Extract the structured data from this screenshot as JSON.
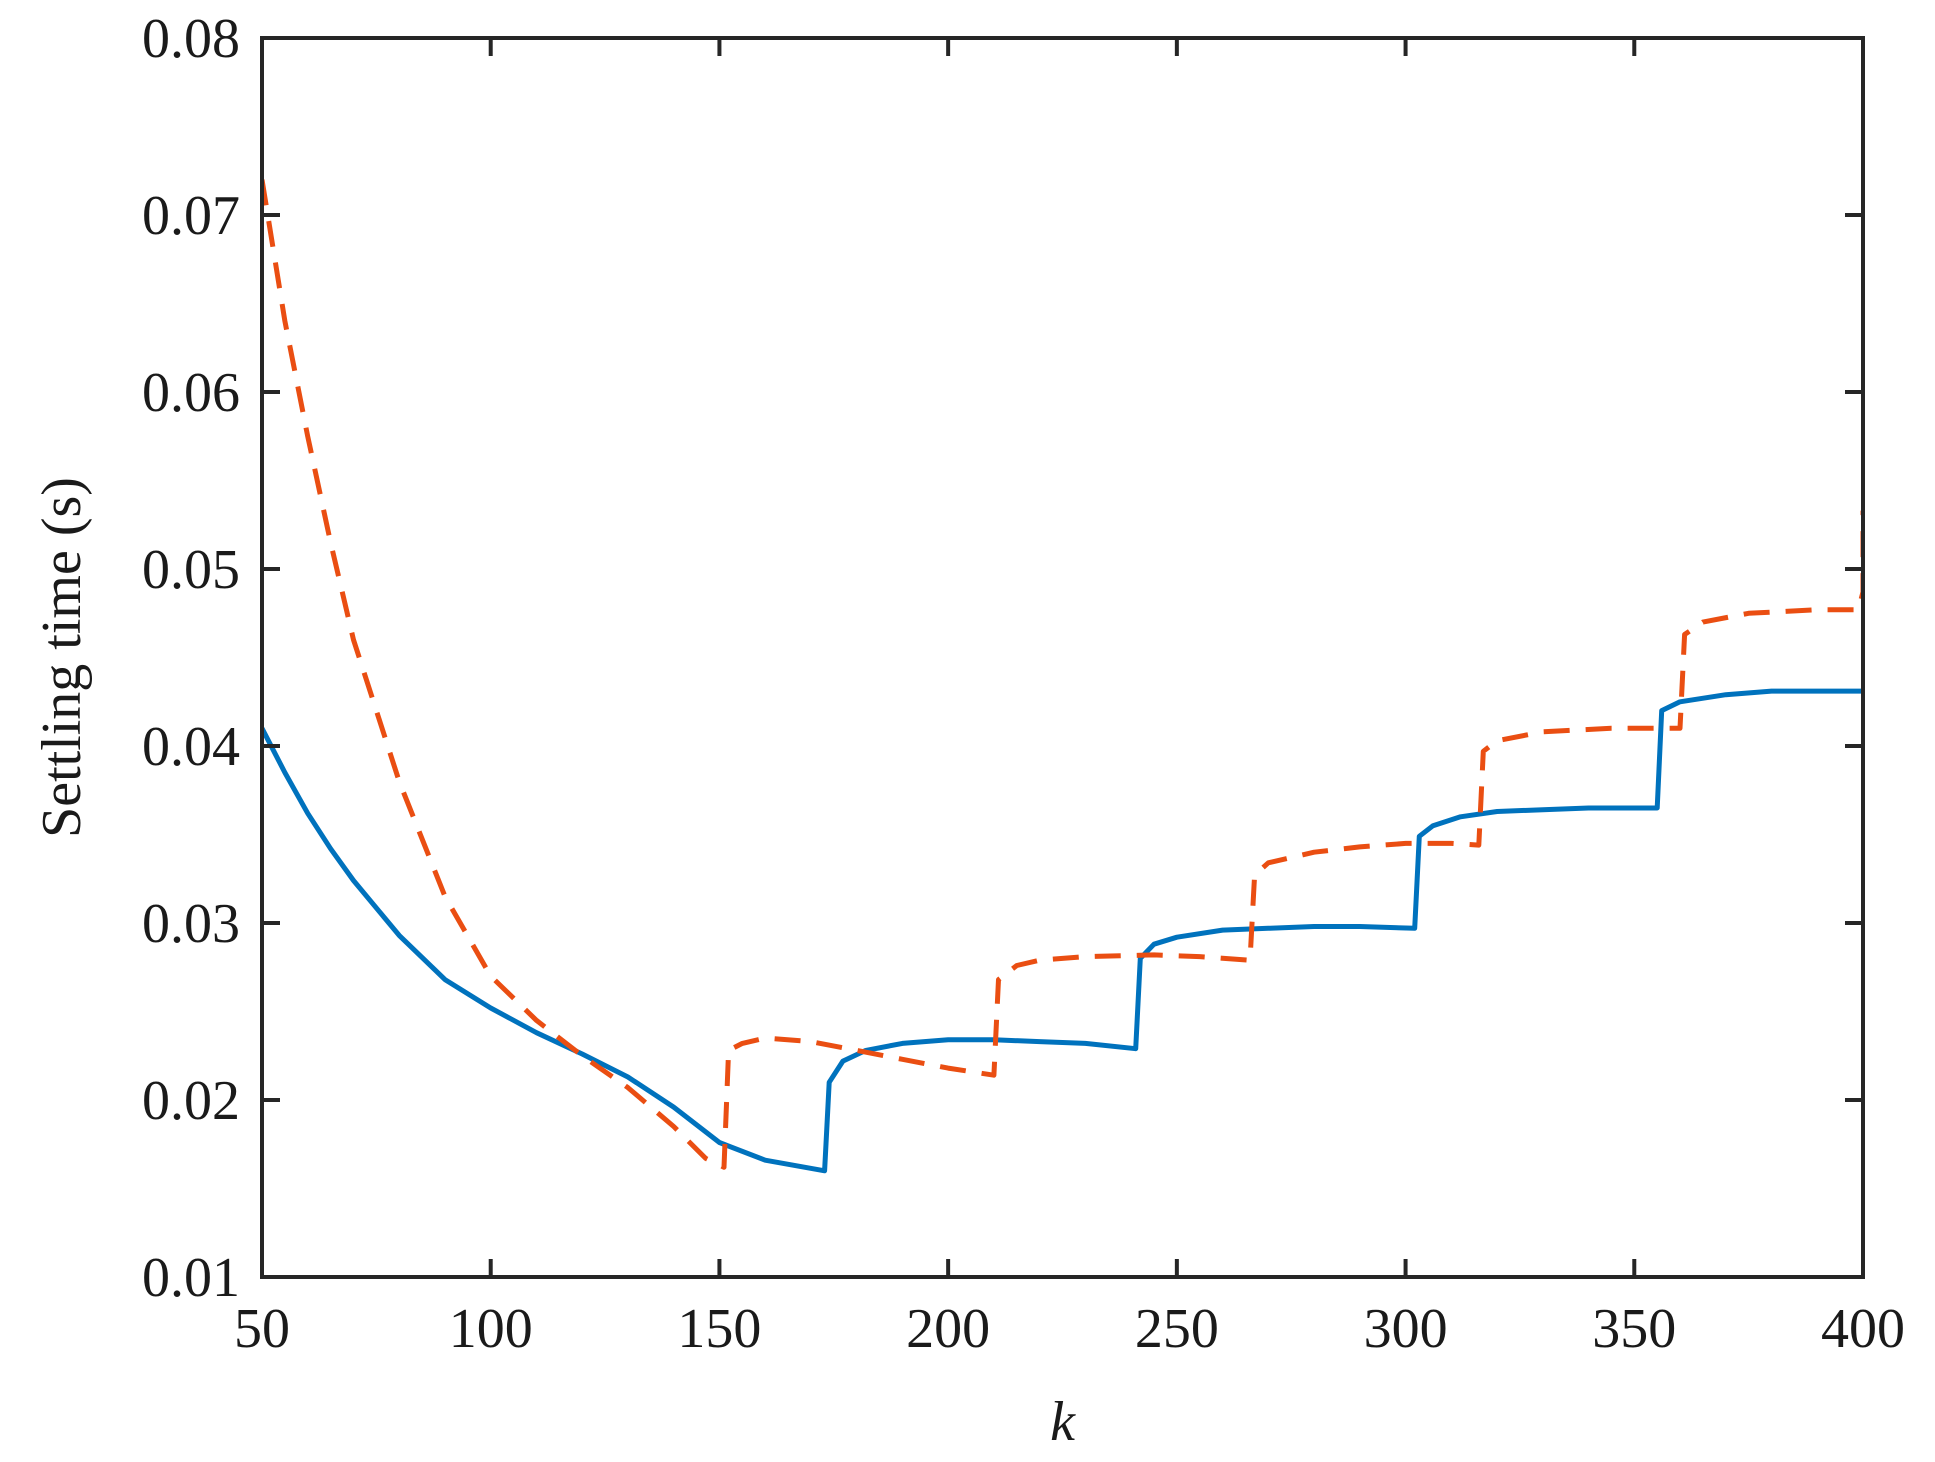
{
  "chart_data": {
    "type": "line",
    "title": "",
    "xlabel": "k",
    "ylabel": "Settling time (s)",
    "xlim": [
      50,
      400
    ],
    "ylim": [
      0.01,
      0.08
    ],
    "x_ticks": [
      50,
      100,
      150,
      200,
      250,
      300,
      350,
      400
    ],
    "x_tick_labels": [
      "50",
      "100",
      "150",
      "200",
      "250",
      "300",
      "350",
      "400"
    ],
    "y_ticks": [
      0.01,
      0.02,
      0.03,
      0.04,
      0.05,
      0.06,
      0.07,
      0.08
    ],
    "y_tick_labels": [
      "0.01",
      "0.02",
      "0.03",
      "0.04",
      "0.05",
      "0.06",
      "0.07",
      "0.08"
    ],
    "grid": false,
    "series": [
      {
        "color": "#0072BD",
        "style": "solid",
        "points": [
          [
            50,
            0.041
          ],
          [
            55,
            0.0385
          ],
          [
            60,
            0.0362
          ],
          [
            65,
            0.0342
          ],
          [
            70,
            0.0324
          ],
          [
            80,
            0.0293
          ],
          [
            90,
            0.0268
          ],
          [
            100,
            0.0252
          ],
          [
            110,
            0.0238
          ],
          [
            120,
            0.0226
          ],
          [
            130,
            0.0213
          ],
          [
            140,
            0.0196
          ],
          [
            150,
            0.0176
          ],
          [
            160,
            0.0166
          ],
          [
            173,
            0.016
          ],
          [
            174,
            0.021
          ],
          [
            177,
            0.0222
          ],
          [
            182,
            0.0228
          ],
          [
            190,
            0.0232
          ],
          [
            200,
            0.0234
          ],
          [
            210,
            0.0234
          ],
          [
            220,
            0.0233
          ],
          [
            230,
            0.0232
          ],
          [
            241,
            0.0229
          ],
          [
            242,
            0.028
          ],
          [
            245,
            0.0288
          ],
          [
            250,
            0.0292
          ],
          [
            260,
            0.0296
          ],
          [
            270,
            0.0297
          ],
          [
            280,
            0.0298
          ],
          [
            290,
            0.0298
          ],
          [
            302,
            0.0297
          ],
          [
            303,
            0.0349
          ],
          [
            306,
            0.0355
          ],
          [
            312,
            0.036
          ],
          [
            320,
            0.0363
          ],
          [
            330,
            0.0364
          ],
          [
            340,
            0.0365
          ],
          [
            355,
            0.0365
          ],
          [
            356,
            0.042
          ],
          [
            360,
            0.0425
          ],
          [
            370,
            0.0429
          ],
          [
            380,
            0.0431
          ],
          [
            390,
            0.0431
          ],
          [
            400,
            0.0431
          ]
        ]
      },
      {
        "color": "#EA4E12",
        "style": "dashed",
        "points": [
          [
            50,
            0.072
          ],
          [
            55,
            0.064
          ],
          [
            60,
            0.0575
          ],
          [
            65,
            0.0515
          ],
          [
            70,
            0.046
          ],
          [
            80,
            0.038
          ],
          [
            90,
            0.0315
          ],
          [
            100,
            0.027
          ],
          [
            110,
            0.0245
          ],
          [
            120,
            0.0225
          ],
          [
            130,
            0.0207
          ],
          [
            140,
            0.0185
          ],
          [
            147,
            0.0167
          ],
          [
            151,
            0.0162
          ],
          [
            152,
            0.0228
          ],
          [
            155,
            0.0232
          ],
          [
            160,
            0.0235
          ],
          [
            170,
            0.0233
          ],
          [
            180,
            0.0228
          ],
          [
            190,
            0.0223
          ],
          [
            200,
            0.0218
          ],
          [
            210,
            0.0214
          ],
          [
            211,
            0.0268
          ],
          [
            215,
            0.0276
          ],
          [
            220,
            0.0279
          ],
          [
            230,
            0.0281
          ],
          [
            245,
            0.0282
          ],
          [
            255,
            0.0281
          ],
          [
            266,
            0.0279
          ],
          [
            267,
            0.0327
          ],
          [
            270,
            0.0334
          ],
          [
            280,
            0.034
          ],
          [
            290,
            0.0343
          ],
          [
            300,
            0.0345
          ],
          [
            310,
            0.0345
          ],
          [
            316,
            0.0344
          ],
          [
            317,
            0.0397
          ],
          [
            320,
            0.0403
          ],
          [
            330,
            0.0408
          ],
          [
            345,
            0.041
          ],
          [
            360,
            0.041
          ],
          [
            361,
            0.0463
          ],
          [
            365,
            0.047
          ],
          [
            375,
            0.0475
          ],
          [
            390,
            0.0477
          ],
          [
            399,
            0.0477
          ],
          [
            400,
            0.0487
          ],
          [
            400,
            0.0533
          ]
        ]
      }
    ]
  }
}
